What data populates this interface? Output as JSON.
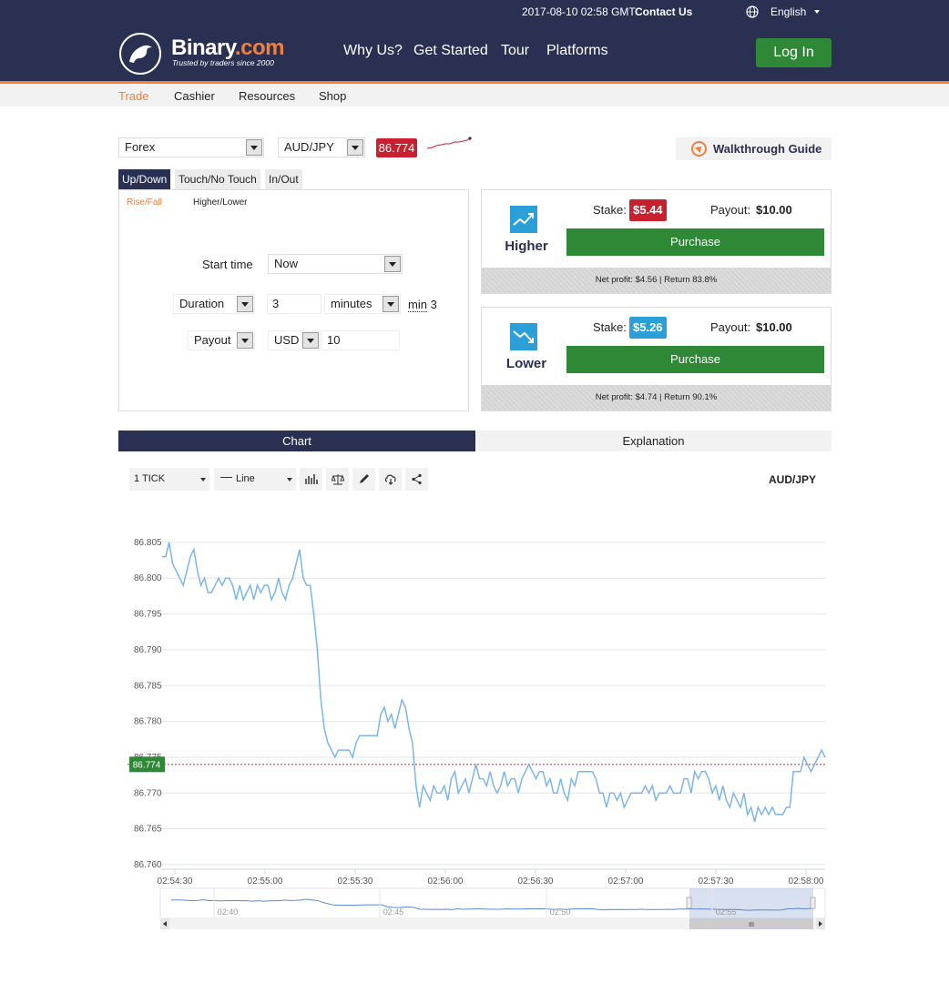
{
  "topbar": {
    "datetime": "2017-08-10 02:58 GMT",
    "contact": "Contact Us",
    "language": "English"
  },
  "header": {
    "brand_name": "Binary",
    "brand_suffix": ".com",
    "tagline": "Trusted by traders since 2000",
    "nav": [
      "Why Us?",
      "Get Started",
      "Tour",
      "Platforms"
    ],
    "login": "Log In"
  },
  "submenu": [
    "Trade",
    "Cashier",
    "Resources",
    "Shop"
  ],
  "trade": {
    "market": "Forex",
    "symbol": "AUD/JPY",
    "spot": "86.774",
    "walkthrough": "Walkthrough Guide",
    "contract_tabs": [
      "Up/Down",
      "Touch/No Touch",
      "In/Out"
    ],
    "subtabs": [
      "Rise/Fall",
      "Higher/Lower"
    ],
    "form": {
      "start_label": "Start time",
      "start_value": "Now",
      "duration_label": "Duration",
      "duration_value": "3",
      "duration_unit": "minutes",
      "min_prefix": "min",
      "min_value": "3",
      "payout_label": "Payout",
      "currency": "USD",
      "amount": "10"
    }
  },
  "purchase": [
    {
      "title": "Higher",
      "stake_label": "Stake:",
      "stake": "$5.44",
      "stake_color": "#c8202f",
      "payout_label": "Payout:",
      "payout": "$10.00",
      "button": "Purchase",
      "footer": "Net profit: $4.56 | Return 83.8%"
    },
    {
      "title": "Lower",
      "stake_label": "Stake:",
      "stake": "$5.26",
      "stake_color": "#2a9fd8",
      "payout_label": "Payout:",
      "payout": "$10.00",
      "button": "Purchase",
      "footer": "Net profit: $4.74 | Return 90.1%"
    }
  ],
  "chart_tabs": [
    "Chart",
    "Explanation"
  ],
  "chart_toolbar": {
    "interval": "1 TICK",
    "type": "Line",
    "symbol": "AUD/JPY"
  },
  "colors": {
    "navy": "#2a3052",
    "orange": "#f0803c",
    "green": "#2e8836",
    "red": "#c8202f",
    "blue": "#2a9fd8",
    "line": "#7cb5ec"
  },
  "chart_data": {
    "type": "line",
    "title": "",
    "series": [
      {
        "values": [
          86.803,
          86.803,
          86.805,
          86.802,
          86.801,
          86.8,
          86.799,
          86.801,
          86.803,
          86.804,
          86.801,
          86.799,
          86.8,
          86.798,
          86.798,
          86.799,
          86.8,
          86.799,
          86.8,
          86.8,
          86.799,
          86.797,
          86.799,
          86.797,
          86.798,
          86.799,
          86.797,
          86.799,
          86.798,
          86.799,
          86.799,
          86.797,
          86.798,
          86.8,
          86.798,
          86.797,
          86.799,
          86.8,
          86.802,
          86.804,
          86.8,
          86.799,
          86.799,
          86.795,
          86.79,
          86.783,
          86.779,
          86.777,
          86.776,
          86.775,
          86.776,
          86.776,
          86.776,
          86.776,
          86.775,
          86.777,
          86.778,
          86.778,
          86.778,
          86.778,
          86.778,
          86.778,
          86.781,
          86.782,
          86.78,
          86.781,
          86.779,
          86.781,
          86.783,
          86.782,
          86.779,
          86.777,
          86.771,
          86.768,
          86.771,
          86.77,
          86.769,
          86.771,
          86.77,
          86.77,
          86.771,
          86.769,
          86.772,
          86.773,
          86.77,
          86.771,
          86.772,
          86.77,
          86.772,
          86.774,
          86.772,
          86.772,
          86.771,
          86.773,
          86.771,
          86.77,
          86.771,
          86.773,
          86.771,
          86.772,
          86.772,
          86.77,
          86.772,
          86.773,
          86.774,
          86.773,
          86.772,
          86.773,
          86.773,
          86.771,
          86.772,
          86.77,
          86.77,
          86.772,
          86.77,
          86.769,
          86.772,
          86.771,
          86.773,
          86.773,
          86.773,
          86.773,
          86.773,
          86.772,
          86.77,
          86.77,
          86.768,
          86.77,
          86.77,
          86.769,
          86.77,
          86.768,
          86.769,
          86.77,
          86.77,
          86.77,
          86.77,
          86.771,
          86.77,
          86.771,
          86.769,
          86.77,
          86.77,
          86.77,
          86.771,
          86.77,
          86.77,
          86.77,
          86.772,
          86.772,
          86.77,
          86.773,
          86.772,
          86.773,
          86.773,
          86.772,
          86.77,
          86.771,
          86.769,
          86.771,
          86.769,
          86.768,
          86.77,
          86.769,
          86.768,
          86.77,
          86.767,
          86.768,
          86.766,
          86.768,
          86.767,
          86.768,
          86.767,
          86.768,
          86.767,
          86.767,
          86.767,
          86.768,
          86.768,
          86.773,
          86.773,
          86.773,
          86.775,
          86.774,
          86.773,
          86.774,
          86.775,
          86.776,
          86.775
        ],
        "color": "#7cb5ec"
      }
    ],
    "y_ticks": [
      "86.805",
      "86.800",
      "86.795",
      "86.790",
      "86.785",
      "86.780",
      "86.775",
      "86.770",
      "86.765",
      "86.760"
    ],
    "x_ticks": [
      "02:54:30",
      "02:55:00",
      "02:55:30",
      "02:56:00",
      "02:56:30",
      "02:57:00",
      "02:57:30",
      "02:58:00"
    ],
    "ylim": [
      86.76,
      86.806
    ],
    "current_price": 86.774,
    "current_price_label": "86.774",
    "grid": true,
    "navigator_ticks": [
      "02:40",
      "02:45",
      "02:50",
      "02:55"
    ],
    "navigator_handle": "III"
  }
}
